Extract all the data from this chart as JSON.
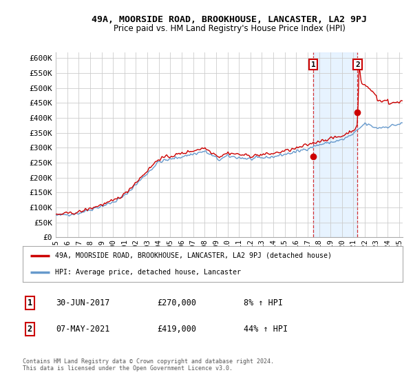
{
  "title": "49A, MOORSIDE ROAD, BROOKHOUSE, LANCASTER, LA2 9PJ",
  "subtitle": "Price paid vs. HM Land Registry's House Price Index (HPI)",
  "ylabel_ticks": [
    "£0",
    "£50K",
    "£100K",
    "£150K",
    "£200K",
    "£250K",
    "£300K",
    "£350K",
    "£400K",
    "£450K",
    "£500K",
    "£550K",
    "£600K"
  ],
  "ytick_values": [
    0,
    50000,
    100000,
    150000,
    200000,
    250000,
    300000,
    350000,
    400000,
    450000,
    500000,
    550000,
    600000
  ],
  "xlim": [
    1995.0,
    2025.3
  ],
  "ylim": [
    0,
    620000
  ],
  "xtick_years": [
    1995,
    1996,
    1997,
    1998,
    1999,
    2000,
    2001,
    2002,
    2003,
    2004,
    2005,
    2006,
    2007,
    2008,
    2009,
    2010,
    2011,
    2012,
    2013,
    2014,
    2015,
    2016,
    2017,
    2018,
    2019,
    2020,
    2021,
    2022,
    2023,
    2024,
    2025
  ],
  "red_line_color": "#cc0000",
  "blue_line_color": "#6699cc",
  "shade_color": "#ddeeff",
  "sale1_x": 2017.5,
  "sale1_y": 270000,
  "sale2_x": 2021.36,
  "sale2_y": 419000,
  "legend_entry1": "49A, MOORSIDE ROAD, BROOKHOUSE, LANCASTER, LA2 9PJ (detached house)",
  "legend_entry2": "HPI: Average price, detached house, Lancaster",
  "table_row1": [
    "1",
    "30-JUN-2017",
    "£270,000",
    "8% ↑ HPI"
  ],
  "table_row2": [
    "2",
    "07-MAY-2021",
    "£419,000",
    "44% ↑ HPI"
  ],
  "footer": "Contains HM Land Registry data © Crown copyright and database right 2024.\nThis data is licensed under the Open Government Licence v3.0.",
  "bg_color": "#ffffff",
  "plot_bg_color": "#ffffff",
  "grid_color": "#cccccc"
}
